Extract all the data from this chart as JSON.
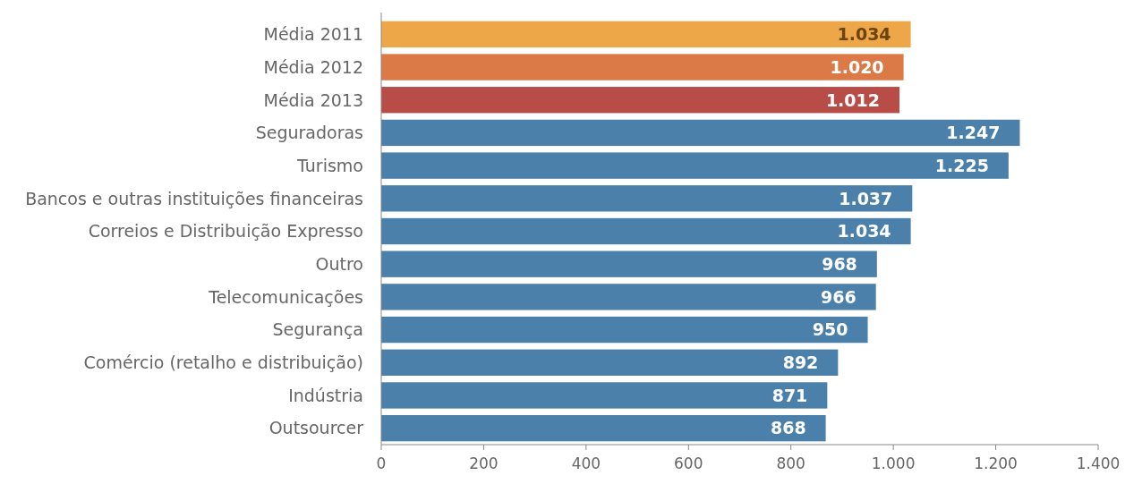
{
  "chart_data": {
    "type": "bar",
    "orientation": "horizontal",
    "categories": [
      "Média 2011",
      "Média 2012",
      "Média 2013",
      "Seguradoras",
      "Turismo",
      "Bancos e outras instituições financeiras",
      "Correios e Distribuição Expresso",
      "Outro",
      "Telecomunicações",
      "Segurança",
      "Comércio (retalho e distribuição)",
      "Indústria",
      "Outsourcer"
    ],
    "values": [
      1034,
      1020,
      1012,
      1247,
      1225,
      1037,
      1034,
      968,
      966,
      950,
      892,
      871,
      868
    ],
    "value_labels": [
      "1.034",
      "1.020",
      "1.012",
      "1.247",
      "1.225",
      "1.037",
      "1.034",
      "968",
      "966",
      "950",
      "892",
      "871",
      "868"
    ],
    "colors": [
      "#eea748",
      "#db7a47",
      "#b84d47",
      "#4a80a9",
      "#4a80a9",
      "#4a80a9",
      "#4a80a9",
      "#4a80a9",
      "#4a80a9",
      "#4a80a9",
      "#4a80a9",
      "#4a80a9",
      "#4a80a9"
    ],
    "xlim": [
      0,
      1400
    ],
    "xticks": [
      0,
      200,
      400,
      600,
      800,
      {
        "value": 1000,
        "label": "1.000"
      },
      {
        "value": 1200,
        "label": "1.200"
      },
      {
        "value": 1400,
        "label": "1.400"
      }
    ]
  }
}
